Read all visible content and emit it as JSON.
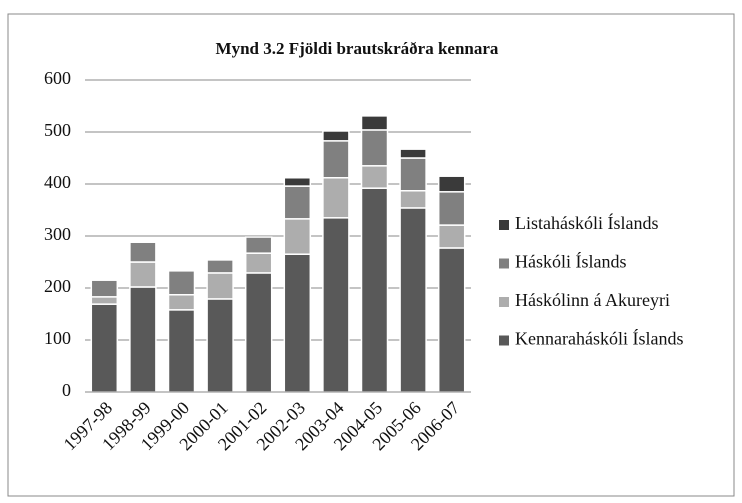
{
  "chart_data": {
    "type": "stacked_bar",
    "title": "Mynd 3.2 Fjöldi brautskráðra kennara",
    "categories": [
      "1997-98",
      "1998-99",
      "1999-00",
      "2000-01",
      "2001-02",
      "2002-03",
      "2003-04",
      "2004-05",
      "2005-06",
      "2006-07"
    ],
    "series": [
      {
        "name": "Kennaraháskóli Íslands",
        "color": "#595959",
        "values": [
          169,
          202,
          158,
          179,
          229,
          265,
          335,
          392,
          354,
          277
        ]
      },
      {
        "name": "Háskólinn á Akureyri",
        "color": "#adadad",
        "values": [
          14,
          48,
          29,
          50,
          38,
          68,
          77,
          43,
          33,
          44
        ]
      },
      {
        "name": "Háskóli Íslands",
        "color": "#808080",
        "values": [
          32,
          38,
          46,
          25,
          31,
          63,
          71,
          69,
          63,
          64
        ]
      },
      {
        "name": "Listaháskóli Íslands",
        "color": "#3a3a3a",
        "values": [
          0,
          0,
          0,
          0,
          0,
          16,
          19,
          27,
          17,
          30
        ]
      }
    ],
    "ylim": [
      0,
      600
    ],
    "yticks": [
      0,
      100,
      200,
      300,
      400,
      500,
      600
    ],
    "grid": true,
    "legend": "right"
  }
}
